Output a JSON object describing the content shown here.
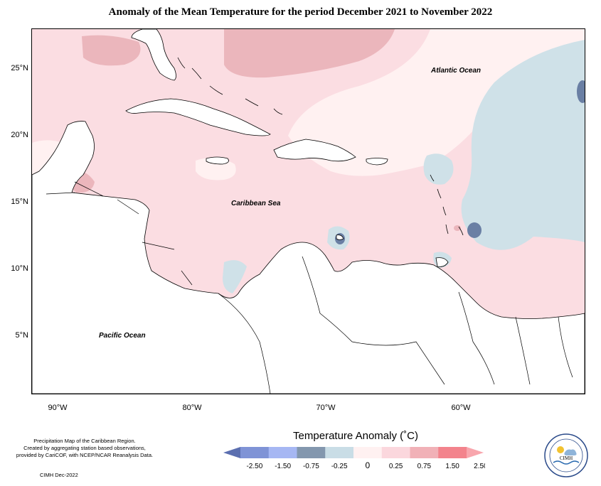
{
  "title": "Anomaly of the Mean Temperature for the period December 2021 to November 2022",
  "lat_labels": [
    "25°N",
    "20°N",
    "15°N",
    "10°N",
    "5°N"
  ],
  "lon_labels": [
    "90°W",
    "80°W",
    "70°W",
    "60°W"
  ],
  "ocean_labels": {
    "atlantic": "Atlantic Ocean",
    "caribbean": "Caribbean Sea",
    "pacific": "Pacific Ocean"
  },
  "notes": {
    "line1": "Precipitation Map of the Caribbean Region.",
    "line2": "Created by aggregating station based observations,",
    "line3": "provided by CariCOF, with NCEP/NCAR Reanalysis Data.",
    "credit": "CIMH Dec-2022"
  },
  "legend": {
    "title": "Temperature Anomaly (˚C)",
    "tick_labels": [
      "-2.50",
      "-1.50",
      "-0.75",
      "-0.25",
      "0",
      "0.25",
      "0.75",
      "1.50",
      "2.50"
    ],
    "colors": [
      "#5b6fb0",
      "#7f93d6",
      "#a6b7f3",
      "#8397ae",
      "#c9dde6",
      "#fff1f1",
      "#fbd7dd",
      "#f1b1b7",
      "#f3838c",
      "#f8a6ad"
    ]
  },
  "map_colors": {
    "base": "#fbdde2",
    "cool_light": "#cfe1e8",
    "cool_dark": "#6a7fa4",
    "warm_pale": "#fff1f1",
    "warm_mid": "#ebb6bc",
    "land": "#ffffff",
    "coast": "#000000"
  },
  "logo": {
    "text": "CIMH"
  }
}
